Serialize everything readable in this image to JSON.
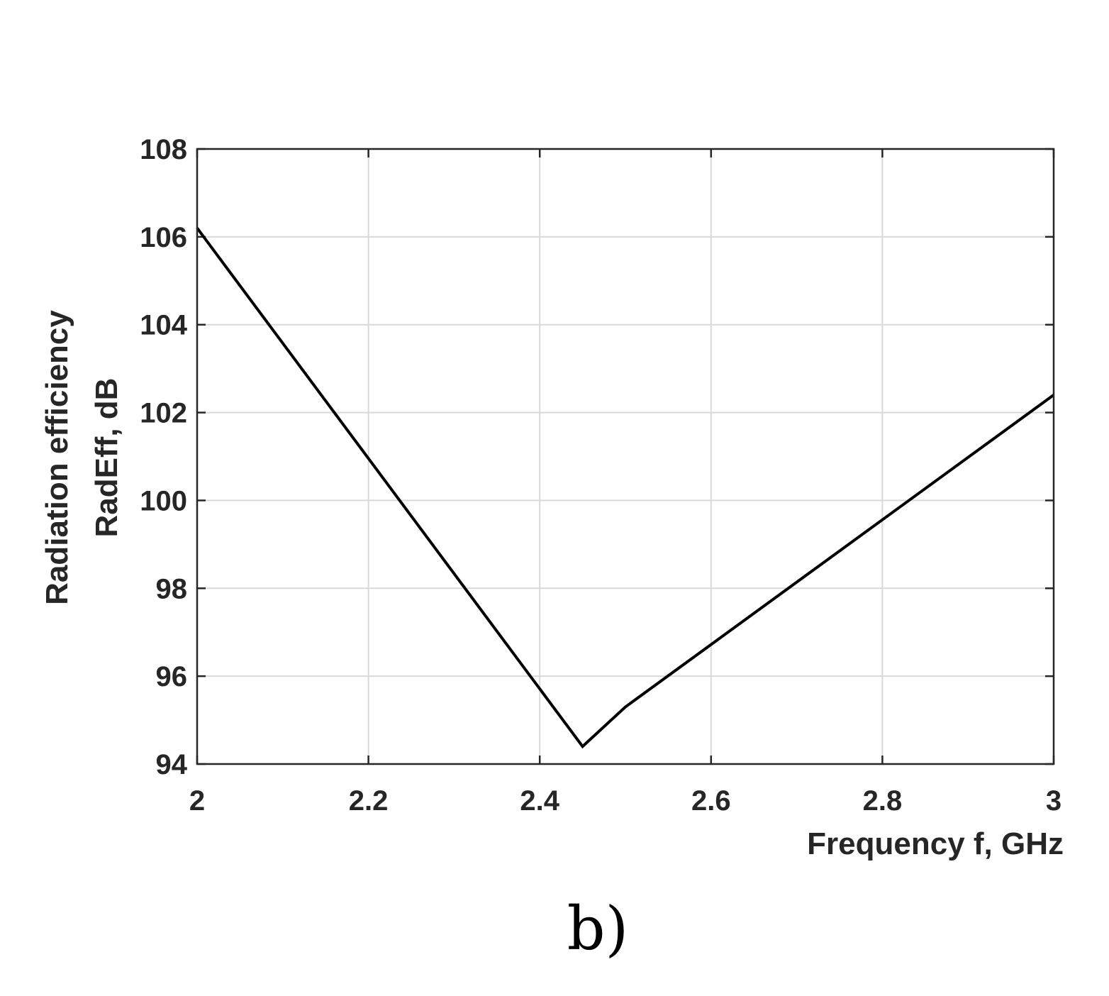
{
  "chart_data": {
    "type": "line",
    "xlabel": "Frequency f, GHz",
    "ylabel": [
      "Radiation efficiency",
      "RadEff, dB"
    ],
    "xlim": [
      2,
      3
    ],
    "ylim": [
      94,
      108
    ],
    "xticks": [
      "2",
      "2.2",
      "2.4",
      "2.6",
      "2.8",
      "3"
    ],
    "yticks": [
      "94",
      "96",
      "98",
      "100",
      "102",
      "104",
      "106",
      "108"
    ],
    "grid": true,
    "series": [
      {
        "color": "#000000",
        "x": [
          2.0,
          2.45,
          2.5,
          3.0
        ],
        "y": [
          106.2,
          94.4,
          95.3,
          102.4
        ]
      }
    ]
  },
  "caption": "b)"
}
